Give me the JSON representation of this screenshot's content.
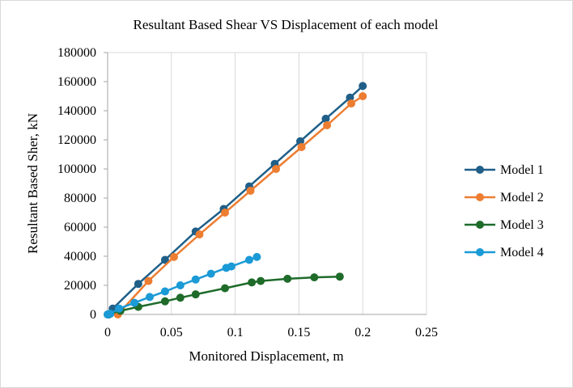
{
  "chart_data": {
    "type": "scatter",
    "title": "Resultant Based Shear VS Displacement of each model",
    "xlabel": "Monitored Displacement, m",
    "ylabel": "Resultant Based Sher, kN",
    "xlim": [
      0,
      0.25
    ],
    "ylim": [
      0,
      180000
    ],
    "x_ticks": [
      0,
      0.05,
      0.1,
      0.15,
      0.2,
      0.25
    ],
    "x_tick_labels": [
      "0",
      "0.05",
      "0.1",
      "0.15",
      "0.2",
      "0.25"
    ],
    "y_ticks": [
      0,
      20000,
      40000,
      60000,
      80000,
      100000,
      120000,
      140000,
      160000,
      180000
    ],
    "y_tick_labels": [
      "0",
      "20000",
      "40000",
      "60000",
      "80000",
      "100000",
      "120000",
      "140000",
      "160000",
      "180000"
    ],
    "grid": "vertical",
    "legend_position": "right",
    "series": [
      {
        "name": "Model 1",
        "color": "#1f5f88",
        "x": [
          0.001,
          0.004,
          0.024,
          0.045,
          0.069,
          0.091,
          0.111,
          0.131,
          0.151,
          0.171,
          0.19,
          0.2
        ],
        "y": [
          0,
          4000,
          21000,
          37500,
          57000,
          72500,
          88000,
          103500,
          119000,
          134500,
          149000,
          157000
        ]
      },
      {
        "name": "Model 2",
        "color": "#ed7d31",
        "x": [
          0.008,
          0.032,
          0.052,
          0.072,
          0.092,
          0.112,
          0.132,
          0.152,
          0.172,
          0.191,
          0.2
        ],
        "y": [
          0,
          23000,
          39500,
          55000,
          70000,
          85000,
          100000,
          115000,
          130000,
          145000,
          150000
        ]
      },
      {
        "name": "Model 3",
        "color": "#1e6b2a",
        "x": [
          0.0,
          0.002,
          0.01,
          0.024,
          0.045,
          0.057,
          0.069,
          0.092,
          0.113,
          0.12,
          0.141,
          0.162,
          0.182
        ],
        "y": [
          0,
          500,
          2500,
          5200,
          9000,
          11500,
          13800,
          18000,
          22000,
          23000,
          24500,
          25500,
          26000
        ]
      },
      {
        "name": "Model 4",
        "color": "#1a9ad6",
        "x": [
          0.0,
          0.002,
          0.009,
          0.021,
          0.033,
          0.045,
          0.057,
          0.069,
          0.081,
          0.093,
          0.097,
          0.111,
          0.117
        ],
        "y": [
          0,
          500,
          4000,
          8000,
          12000,
          15800,
          20000,
          24000,
          28000,
          32000,
          33000,
          37500,
          39500
        ]
      }
    ]
  }
}
